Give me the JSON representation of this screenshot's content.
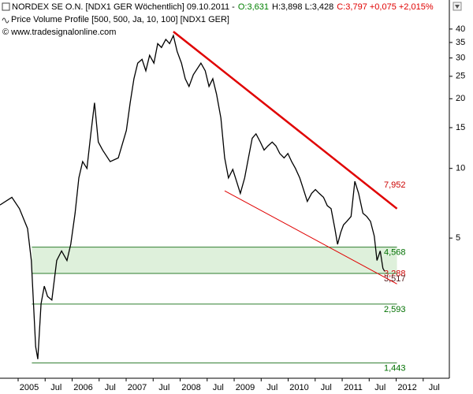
{
  "header": {
    "line1": [
      {
        "text": "NORDEX SE O.N. [NDX1 GER  Wöchentlich] 09.10.2011 -",
        "color": "#000000"
      },
      {
        "text": "O:3,631",
        "color": "#008000"
      },
      {
        "text": "H:3,898 L:3,428",
        "color": "#000000"
      },
      {
        "text": "C:3,797 +0,075 +2,015%",
        "color": "#e00000"
      }
    ],
    "line2": "Price Volume Profile [500, 500, Ja, 10, 100] [NDX1 GER]",
    "line3": "© www.tradesignalonline.com"
  },
  "chart_data": {
    "type": "line",
    "log_scale": true,
    "xlim": [
      2004.46,
      2012.78
    ],
    "ylim": [
      1.24,
      53.4
    ],
    "xticks": [
      {
        "value": 2005,
        "label": "2005"
      },
      {
        "value": 2005.5,
        "label": "Jul"
      },
      {
        "value": 2006,
        "label": "2006"
      },
      {
        "value": 2006.5,
        "label": "Jul"
      },
      {
        "value": 2007,
        "label": "2007"
      },
      {
        "value": 2007.5,
        "label": "Jul"
      },
      {
        "value": 2008,
        "label": "2008"
      },
      {
        "value": 2008.5,
        "label": "Jul"
      },
      {
        "value": 2009,
        "label": "2009"
      },
      {
        "value": 2009.5,
        "label": "Jul"
      },
      {
        "value": 2010,
        "label": "2010"
      },
      {
        "value": 2010.5,
        "label": "Jul"
      },
      {
        "value": 2011,
        "label": "2011"
      },
      {
        "value": 2011.5,
        "label": "Jul"
      },
      {
        "value": 2012,
        "label": "2012"
      },
      {
        "value": 2012.5,
        "label": "Jul"
      }
    ],
    "yticks": [
      5,
      10,
      15,
      20,
      25,
      30,
      35,
      40
    ],
    "x": [
      2004.46,
      2004.68,
      2004.82,
      2004.97,
      2005.04,
      2005.12,
      2005.16,
      2005.22,
      2005.28,
      2005.34,
      2005.42,
      2005.51,
      2005.6,
      2005.7,
      2005.77,
      2005.85,
      2005.92,
      2005.99,
      2006.07,
      2006.14,
      2006.21,
      2006.28,
      2006.36,
      2006.5,
      2006.65,
      2006.8,
      2006.87,
      2006.94,
      2007.01,
      2007.09,
      2007.16,
      2007.23,
      2007.31,
      2007.38,
      2007.45,
      2007.53,
      2007.6,
      2007.67,
      2007.74,
      2007.82,
      2007.89,
      2007.96,
      2008.04,
      2008.18,
      2008.26,
      2008.33,
      2008.4,
      2008.47,
      2008.55,
      2008.62,
      2008.69,
      2008.77,
      2008.84,
      2008.91,
      2008.99,
      2009.06,
      2009.13,
      2009.2,
      2009.28,
      2009.35,
      2009.42,
      2009.5,
      2009.57,
      2009.64,
      2009.72,
      2009.79,
      2009.86,
      2009.93,
      2010.01,
      2010.08,
      2010.15,
      2010.23,
      2010.3,
      2010.37,
      2010.45,
      2010.52,
      2010.59,
      2010.66,
      2010.71,
      2010.77,
      2010.82,
      2010.88,
      2010.96,
      2011.03,
      2011.1,
      2011.18,
      2011.25,
      2011.32,
      2011.39,
      2011.44,
      2011.5,
      2011.55,
      2011.58
    ],
    "series": [
      {
        "color": "#000000",
        "values": [
          6.95,
          7.5,
          6.7,
          5.5,
          4,
          1.7,
          1.5,
          2.6,
          3.1,
          2.8,
          2.7,
          4,
          4.4,
          4,
          4.7,
          6.4,
          9.1,
          10.7,
          10,
          14,
          19.2,
          13,
          12,
          10.7,
          11.1,
          14.6,
          19.2,
          24.4,
          28.5,
          29.6,
          26.4,
          30.8,
          28.5,
          34.6,
          33.3,
          36.1,
          34.6,
          37.5,
          32,
          28.5,
          24.4,
          22.6,
          25.4,
          28.5,
          26.4,
          22.6,
          24.4,
          20.9,
          16.5,
          11.1,
          9.1,
          9.9,
          8.8,
          7.8,
          9.1,
          11.1,
          13.5,
          14.1,
          13,
          12,
          12.5,
          13,
          12.5,
          11.6,
          11.1,
          11.6,
          10.7,
          10,
          9.1,
          8.1,
          7.2,
          7.8,
          8.1,
          7.8,
          7.5,
          6.9,
          6.7,
          5.5,
          4.7,
          5.3,
          5.7,
          5.9,
          6.2,
          8.8,
          7.8,
          6.4,
          6.2,
          5.9,
          5.1,
          4,
          4.4,
          3.7,
          3.6
        ]
      }
    ],
    "trendlines": [
      {
        "x": [
          2007.67,
          2011.81
        ],
        "values": [
          39,
          6.7
        ],
        "color": "#e00000",
        "style": "thick"
      },
      {
        "x": [
          2008.62,
          2011.81
        ],
        "values": [
          8,
          3.17
        ],
        "color": "#e00000",
        "style": "thin"
      }
    ],
    "level_span": [
      2005.05,
      2011.81
    ],
    "annotations": [
      {
        "value": 7.952,
        "label": "7,952",
        "color": "#cc0000",
        "line": false
      },
      {
        "value": 4.568,
        "label": "4,568",
        "color": "#007000",
        "line": true
      },
      {
        "value": 3.288,
        "label": "3,288",
        "color": "#cc0000",
        "line": false
      },
      {
        "value": 3.517,
        "label": "3,517",
        "color": "#552222",
        "line": true
      },
      {
        "value": 2.593,
        "label": "2,593",
        "color": "#007000",
        "line": true
      },
      {
        "value": 1.443,
        "label": "1,443",
        "color": "#007000",
        "line": true
      }
    ]
  }
}
